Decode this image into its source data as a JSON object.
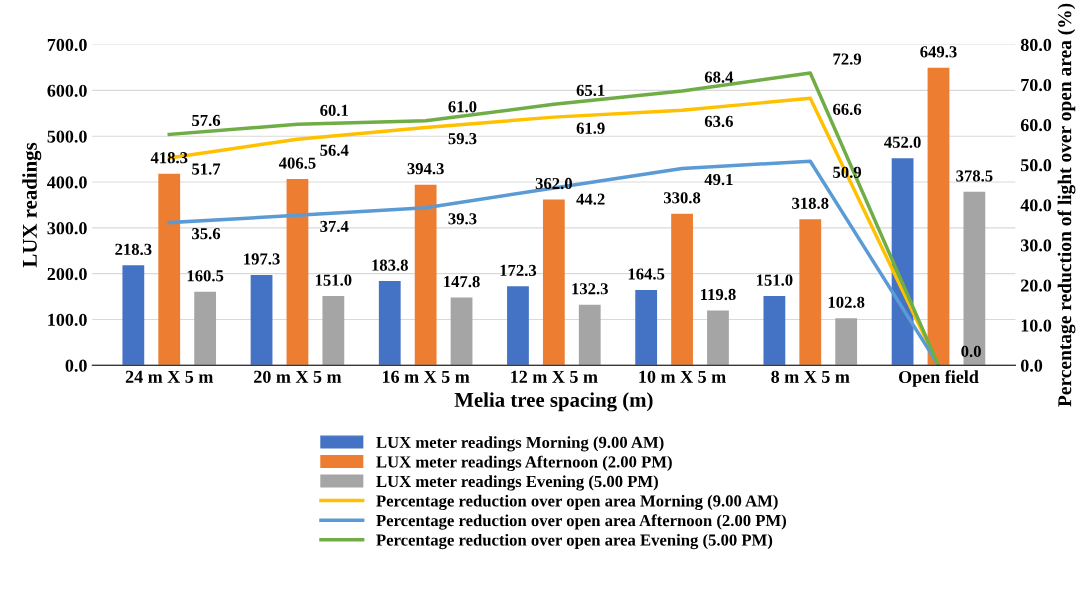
{
  "chart_data": {
    "type": "bar",
    "xlabel": "Melia tree spacing (m)",
    "ylabel": "LUX readings",
    "y2label": "Percentage reduction of light over open area (%)",
    "categories": [
      "24 m X 5 m",
      "20 m X 5 m",
      "16 m X 5 m",
      "12 m X 5 m",
      "10 m X 5 m",
      "8 m X 5 m",
      "Open field"
    ],
    "series": [
      {
        "name": "LUX meter readings Morning (9.00 AM)",
        "color": "#4472c4",
        "values": [
          218.3,
          197.3,
          183.8,
          172.3,
          164.5,
          151.0,
          452.0
        ],
        "value_labels": [
          "218.3",
          "197.3",
          "183.8",
          "172.3",
          "164.5",
          "151.0",
          "452.0"
        ]
      },
      {
        "name": "LUX meter readings Afternoon (2.00 PM)",
        "color": "#ed7d31",
        "values": [
          418.3,
          406.5,
          394.3,
          362.0,
          330.8,
          318.8,
          649.3
        ],
        "value_labels": [
          "418.3",
          "406.5",
          "394.3",
          "362.0",
          "330.8",
          "318.8",
          "649.3"
        ]
      },
      {
        "name": "LUX meter readings Evening (5.00 PM)",
        "color": "#a5a5a5",
        "values": [
          160.5,
          151.0,
          147.8,
          132.3,
          119.8,
          102.8,
          378.5
        ],
        "value_labels": [
          "160.5",
          "151.0",
          "147.8",
          "132.3",
          "119.8",
          "102.8",
          "378.5"
        ]
      },
      {
        "name": "Percentage reduction over open area Morning (9.00 AM)",
        "type": "line",
        "axis": "y2",
        "color": "#ffc000",
        "values": [
          51.7,
          56.4,
          59.3,
          61.9,
          63.6,
          66.6,
          0.0
        ],
        "value_labels": [
          "51.7",
          "56.4",
          "59.3",
          "61.9",
          "63.6",
          "66.6",
          null
        ]
      },
      {
        "name": "Percentage reduction over open area Afternoon (2.00 PM)",
        "type": "line",
        "axis": "y2",
        "color": "#5b9bd5",
        "values": [
          35.6,
          37.4,
          39.3,
          44.2,
          49.1,
          50.9,
          0.0
        ],
        "value_labels": [
          "35.6",
          "37.4",
          "39.3",
          "44.2",
          "49.1",
          "50.9",
          null
        ]
      },
      {
        "name": "Percentage reduction over open area Evening (5.00 PM)",
        "type": "line",
        "axis": "y2",
        "color": "#70ad47",
        "values": [
          57.6,
          60.1,
          61.0,
          65.1,
          68.4,
          72.9,
          0.0
        ],
        "value_labels": [
          "57.6",
          "60.1",
          "61.0",
          "65.1",
          "68.4",
          "72.9",
          "0.0"
        ]
      }
    ],
    "ylim": [
      0,
      700
    ],
    "yticks": [
      {
        "value": 0,
        "label": "0.0"
      },
      {
        "value": 100,
        "label": "100.0"
      },
      {
        "value": 200,
        "label": "200.0"
      },
      {
        "value": 300,
        "label": "300.0"
      },
      {
        "value": 400,
        "label": "400.0"
      },
      {
        "value": 500,
        "label": "500.0"
      },
      {
        "value": 600,
        "label": "600.0"
      },
      {
        "value": 700,
        "label": "700.0"
      }
    ],
    "y2lim": [
      0,
      80
    ],
    "y2ticks": [
      {
        "value": 0,
        "label": "0.0"
      },
      {
        "value": 10,
        "label": "10.0"
      },
      {
        "value": 20,
        "label": "20.0"
      },
      {
        "value": 30,
        "label": "30.0"
      },
      {
        "value": 40,
        "label": "40.0"
      },
      {
        "value": 50,
        "label": "50.0"
      },
      {
        "value": 60,
        "label": "60.0"
      },
      {
        "value": 70,
        "label": "70.0"
      },
      {
        "value": 80,
        "label": "80.0"
      }
    ],
    "grid": "y",
    "legend": "bottom"
  }
}
